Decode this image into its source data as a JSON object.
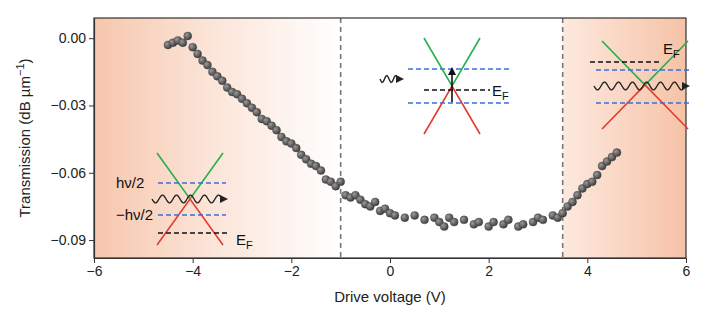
{
  "chart_data": {
    "type": "scatter",
    "x_label": "Drive voltage (V)",
    "y_label": {
      "text": "Transmission (dB µm",
      "superscript": "−1",
      "suffix": ")"
    },
    "xlim": [
      -6,
      6
    ],
    "ylim": [
      -0.098,
      0.009
    ],
    "xticks": [
      {
        "value": -6,
        "label": "−6"
      },
      {
        "value": -4,
        "label": "−4"
      },
      {
        "value": -2,
        "label": "−2"
      },
      {
        "value": 0,
        "label": "0"
      },
      {
        "value": 2,
        "label": "2"
      },
      {
        "value": 4,
        "label": "4"
      },
      {
        "value": 6,
        "label": "6"
      }
    ],
    "yticks": [
      {
        "value": 0,
        "label": "0.00"
      },
      {
        "value": -0.03,
        "label": "−0.03"
      },
      {
        "value": -0.06,
        "label": "−0.06"
      },
      {
        "value": -0.09,
        "label": "−0.09"
      }
    ],
    "vlines": [
      -1,
      3.5
    ],
    "x": [
      -4.5,
      -4.4,
      -4.3,
      -4.2,
      -4.1,
      -4.0,
      -3.9,
      -3.8,
      -3.7,
      -3.6,
      -3.5,
      -3.4,
      -3.3,
      -3.2,
      -3.1,
      -3.0,
      -2.9,
      -2.8,
      -2.7,
      -2.6,
      -2.5,
      -2.4,
      -2.3,
      -2.2,
      -2.1,
      -2.0,
      -1.9,
      -1.8,
      -1.7,
      -1.6,
      -1.5,
      -1.4,
      -1.3,
      -1.2,
      -1.1,
      -1.0,
      -0.9,
      -0.8,
      -0.7,
      -0.6,
      -0.5,
      -0.4,
      -0.3,
      -0.2,
      -0.1,
      0.0,
      0.1,
      0.3,
      0.5,
      0.7,
      0.9,
      1.0,
      1.1,
      1.2,
      1.3,
      1.5,
      1.7,
      1.8,
      2.0,
      2.1,
      2.3,
      2.4,
      2.6,
      2.7,
      2.9,
      3.0,
      3.1,
      3.3,
      3.4,
      3.5,
      3.6,
      3.7,
      3.8,
      3.9,
      4.0,
      4.1,
      4.2,
      4.3,
      4.4,
      4.5,
      4.6
    ],
    "series": [
      {
        "color": "#3a3a3a",
        "marker": "circle",
        "values": [
          -0.003,
          -0.002,
          -0.001,
          -0.002,
          0.001,
          -0.004,
          -0.007,
          -0.01,
          -0.012,
          -0.015,
          -0.017,
          -0.019,
          -0.022,
          -0.024,
          -0.025,
          -0.027,
          -0.029,
          -0.031,
          -0.033,
          -0.036,
          -0.037,
          -0.039,
          -0.041,
          -0.044,
          -0.046,
          -0.047,
          -0.049,
          -0.052,
          -0.054,
          -0.056,
          -0.057,
          -0.059,
          -0.063,
          -0.064,
          -0.066,
          -0.064,
          -0.07,
          -0.071,
          -0.07,
          -0.072,
          -0.074,
          -0.075,
          -0.073,
          -0.077,
          -0.076,
          -0.078,
          -0.079,
          -0.08,
          -0.079,
          -0.081,
          -0.08,
          -0.082,
          -0.084,
          -0.08,
          -0.082,
          -0.081,
          -0.083,
          -0.082,
          -0.084,
          -0.082,
          -0.083,
          -0.081,
          -0.084,
          -0.083,
          -0.082,
          -0.08,
          -0.081,
          -0.079,
          -0.08,
          -0.078,
          -0.075,
          -0.073,
          -0.07,
          -0.067,
          -0.065,
          -0.064,
          -0.061,
          -0.057,
          -0.055,
          -0.053,
          -0.051
        ]
      }
    ],
    "annotations": [
      {
        "text": "hν/2"
      },
      {
        "text": "−hν/2"
      },
      {
        "text": "E",
        "subscript": "F"
      },
      {
        "text": "E",
        "subscript": "F"
      },
      {
        "text": "E",
        "subscript": "F"
      }
    ]
  }
}
